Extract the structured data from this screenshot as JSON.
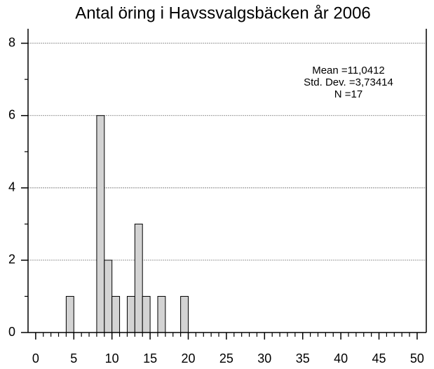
{
  "chart_data": {
    "type": "histogram",
    "title": "Antal öring i Havssvalgsbäcken år 2006",
    "annotations": [
      "Mean =11,0412",
      "Std. Dev. =3,73414",
      "N =17"
    ],
    "bins": [
      4,
      5,
      6,
      7,
      8,
      9,
      10,
      11,
      12,
      13,
      14,
      15,
      16,
      17,
      18,
      19,
      20
    ],
    "values": [
      1,
      0,
      0,
      0,
      6,
      2,
      1,
      0,
      1,
      3,
      1,
      0,
      1,
      0,
      0,
      1
    ],
    "color": "#d3d3d3",
    "xlim": [
      -1,
      51.2
    ],
    "xticks": [
      0,
      5,
      10,
      15,
      20,
      25,
      30,
      35,
      40,
      45,
      50
    ],
    "ylim": [
      0,
      8.4
    ],
    "yticks": [
      0,
      2,
      4,
      6,
      8
    ],
    "grid": true
  }
}
